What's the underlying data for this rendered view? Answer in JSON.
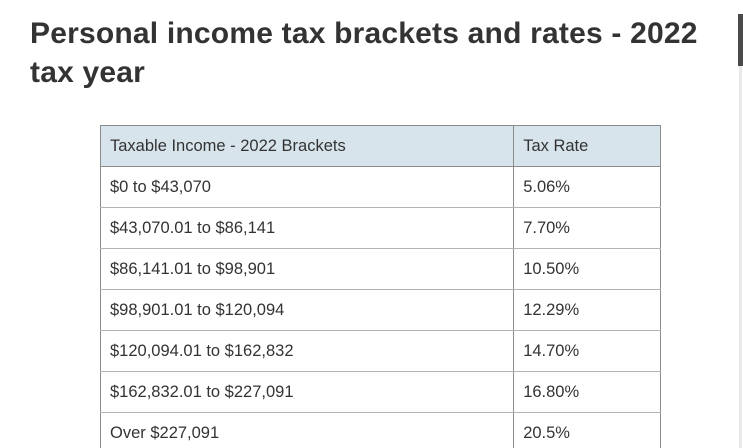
{
  "page": {
    "title": "Personal income tax brackets and rates - 2022 tax year"
  },
  "table": {
    "headers": [
      "Taxable Income - 2022 Brackets",
      "Tax Rate"
    ],
    "rows": [
      {
        "income": "$0 to $43,070",
        "rate": "5.06%"
      },
      {
        "income": "$43,070.01 to $86,141",
        "rate": "7.70%"
      },
      {
        "income": "$86,141.01 to $98,901",
        "rate": "10.50%"
      },
      {
        "income": "$98,901.01 to $120,094",
        "rate": "12.29%"
      },
      {
        "income": "$120,094.01 to $162,832",
        "rate": "14.70%"
      },
      {
        "income": "$162,832.01 to $227,091",
        "rate": "16.80%"
      },
      {
        "income": "Over $227,091",
        "rate": "20.5%"
      }
    ]
  },
  "colors": {
    "header_bg": "#d8e4ec",
    "border_outer": "#8c8c8c",
    "border_inner": "#b3b3b3",
    "text": "#333333"
  },
  "chart_data": {
    "type": "table",
    "title": "Personal income tax brackets and rates - 2022 tax year",
    "columns": [
      "Taxable Income - 2022 Brackets",
      "Tax Rate"
    ],
    "rows": [
      [
        "$0 to $43,070",
        "5.06%"
      ],
      [
        "$43,070.01 to $86,141",
        "7.70%"
      ],
      [
        "$86,141.01 to $98,901",
        "10.50%"
      ],
      [
        "$98,901.01 to $120,094",
        "12.29%"
      ],
      [
        "$120,094.01 to $162,832",
        "14.70%"
      ],
      [
        "$162,832.01 to $227,091",
        "16.80%"
      ],
      [
        "Over $227,091",
        "20.5%"
      ]
    ]
  }
}
